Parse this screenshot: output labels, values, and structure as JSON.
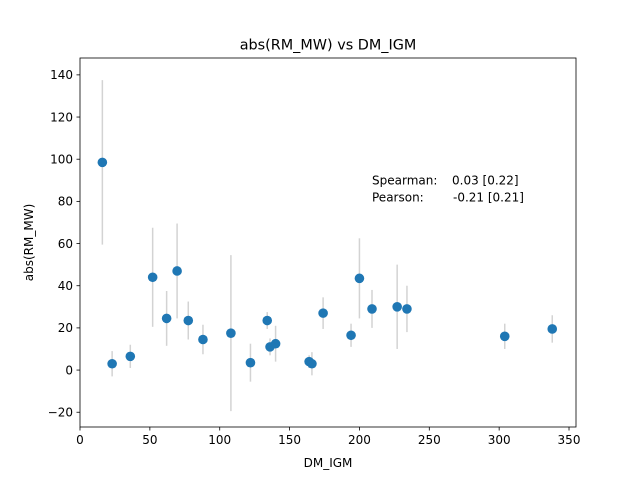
{
  "chart_data": {
    "type": "scatter",
    "title": "abs(RM_MW) vs DM_IGM",
    "xlabel": "DM_IGM",
    "ylabel": "abs(RM_MW)",
    "xlim": [
      0,
      355
    ],
    "ylim": [
      -27,
      148
    ],
    "xticks": [
      0,
      50,
      100,
      150,
      200,
      250,
      300,
      350
    ],
    "yticks": [
      -20,
      0,
      20,
      40,
      60,
      80,
      100,
      120,
      140
    ],
    "xtick_labels": [
      "0",
      "50",
      "100",
      "150",
      "200",
      "250",
      "300",
      "350"
    ],
    "ytick_labels": [
      "−20",
      "0",
      "20",
      "40",
      "60",
      "80",
      "100",
      "120",
      "140"
    ],
    "grid": false,
    "marker_color": "#1f77b4",
    "errorbar_color": "#d3d3d3",
    "annotations": [
      {
        "label": "Spearman:",
        "value": "0.03 [0.22]",
        "x": 209,
        "y": 88
      },
      {
        "label": "Pearson:",
        "value": "-0.21 [0.21]",
        "x": 209,
        "y": 80
      }
    ],
    "points": [
      {
        "x": 16,
        "y": 98.5,
        "err": 39
      },
      {
        "x": 23,
        "y": 3,
        "err": 6
      },
      {
        "x": 36,
        "y": 6.5,
        "err": 5.5
      },
      {
        "x": 52,
        "y": 44,
        "err": 23.5
      },
      {
        "x": 62,
        "y": 24.5,
        "err": 13
      },
      {
        "x": 69.5,
        "y": 47,
        "err": 22.5
      },
      {
        "x": 77.5,
        "y": 23.5,
        "err": 9
      },
      {
        "x": 88,
        "y": 14.5,
        "err": 7
      },
      {
        "x": 108,
        "y": 17.5,
        "err": 37
      },
      {
        "x": 122,
        "y": 3.5,
        "err": 9
      },
      {
        "x": 134,
        "y": 23.5,
        "err": 4
      },
      {
        "x": 136,
        "y": 11,
        "err": 4
      },
      {
        "x": 140,
        "y": 12.5,
        "err": 8.5
      },
      {
        "x": 164,
        "y": 4,
        "err": 3
      },
      {
        "x": 166,
        "y": 3,
        "err": 5.5
      },
      {
        "x": 174,
        "y": 27,
        "err": 7.5
      },
      {
        "x": 194,
        "y": 16.5,
        "err": 5.5
      },
      {
        "x": 200,
        "y": 43.5,
        "err": 19
      },
      {
        "x": 209,
        "y": 29,
        "err": 9
      },
      {
        "x": 227,
        "y": 30,
        "err": 20
      },
      {
        "x": 234,
        "y": 29,
        "err": 11
      },
      {
        "x": 304,
        "y": 16,
        "err": 6
      },
      {
        "x": 338,
        "y": 19.5,
        "err": 6.5
      }
    ]
  }
}
